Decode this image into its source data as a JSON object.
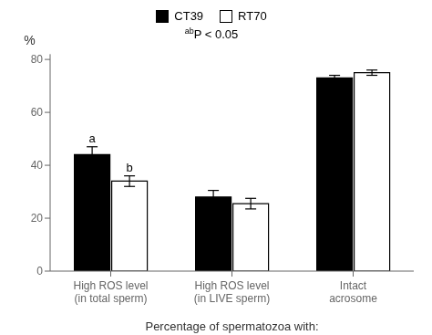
{
  "chart_data": {
    "type": "bar",
    "categories": [
      "High ROS level\n(in total sperm)",
      "High ROS level\n(in LIVE sperm)",
      "Intact\nacrosome"
    ],
    "series": [
      {
        "name": "CT39",
        "color": "#000000",
        "values": [
          44.0,
          28.0,
          73.0
        ],
        "errors": [
          3.0,
          2.5,
          1.0
        ]
      },
      {
        "name": "RT70",
        "color": "#ffffff",
        "values": [
          34.0,
          25.5,
          75.0
        ],
        "errors": [
          2.0,
          2.0,
          1.0
        ]
      }
    ],
    "y_label": "%",
    "x_label": "Percentage of spermatozoa with:",
    "ylim": [
      0,
      82
    ],
    "yticks": [
      0,
      20,
      40,
      60,
      80
    ],
    "grid": false,
    "legend": "top",
    "annotations": [
      "abP < 0.05"
    ],
    "bar_annotations": [
      {
        "series": "CT39",
        "category": "High ROS level\n(in total sperm)",
        "text": "a"
      },
      {
        "series": "RT70",
        "category": "High ROS level\n(in total sperm)",
        "text": "b"
      }
    ]
  }
}
